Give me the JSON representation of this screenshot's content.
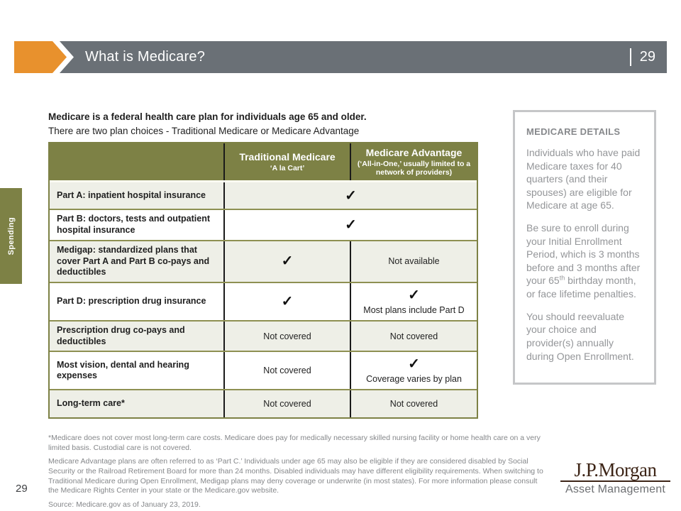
{
  "header": {
    "title": "What is Medicare?",
    "page_number": "29"
  },
  "side_tab": {
    "label": "Spending"
  },
  "intro": {
    "headline": "Medicare is a federal health care plan for individuals age 65 and older.",
    "subline": "There are two plan choices - Traditional Medicare or Medicare Advantage"
  },
  "table": {
    "check_icon": "✓",
    "columns": [
      {
        "title": "",
        "subtitle": ""
      },
      {
        "title": "Traditional Medicare",
        "subtitle": "‘A la Cart’"
      },
      {
        "title": "Medicare Advantage",
        "subtitle": "(‘All-in-One,’ usually limited to a network of providers)"
      }
    ],
    "rows": [
      {
        "label": "Part A: inpatient hospital insurance",
        "span": {
          "check": true
        }
      },
      {
        "label": "Part B: doctors, tests and outpatient hospital insurance",
        "span": {
          "check": true
        }
      },
      {
        "label": "Medigap: standardized plans that cover Part A and Part B co-pays and deductibles",
        "traditional": {
          "check": true
        },
        "advantage": {
          "text": "Not available"
        }
      },
      {
        "label": "Part D: prescription drug insurance",
        "traditional": {
          "check": true
        },
        "advantage": {
          "check": true,
          "note": "Most plans include Part D"
        }
      },
      {
        "label": "Prescription drug co-pays and deductibles",
        "traditional": {
          "text": "Not covered"
        },
        "advantage": {
          "text": "Not covered"
        }
      },
      {
        "label": "Most vision, dental and hearing expenses",
        "traditional": {
          "text": "Not covered"
        },
        "advantage": {
          "check": true,
          "note": "Coverage varies by plan"
        }
      },
      {
        "label": "Long-term care*",
        "traditional": {
          "text": "Not covered"
        },
        "advantage": {
          "text": "Not covered"
        }
      }
    ]
  },
  "details_box": {
    "title": "MEDICARE DETAILS",
    "paragraphs": [
      "Individuals who have paid Medicare taxes for 40 quarters (and their spouses) are eligible for Medicare at age 65.",
      "Be sure to enroll during your Initial Enrollment Period, which is 3 months before and 3 months after your 65th birthday month, or face lifetime penalties.",
      "You should reevaluate your choice and provider(s) annually during Open Enrollment."
    ]
  },
  "footnotes": [
    "*Medicare does not cover most long-term care costs. Medicare does pay for medically necessary skilled nursing facility or home health care on a very limited basis. Custodial care is not covered.",
    "Medicare Advantage plans are often referred to as ‘Part C.’ Individuals under age 65 may also be eligible if they are considered disabled by Social Security or the Railroad Retirement Board for more than 24 months. Disabled individuals may have different eligibility requirements. When switching to Traditional Medicare during Open Enrollment, Medigap plans may deny coverage or underwrite (in most states). For more information please consult the Medicare Rights Center in your state or the Medicare.gov website."
  ],
  "source": "Source: Medicare.gov as of January 23, 2019.",
  "page_footer": {
    "page_number": "29"
  },
  "logo": {
    "brand": "J.P.Morgan",
    "unit": "Asset Management"
  },
  "colors": {
    "olive": "#7D8145",
    "slate": "#6A7076",
    "orange": "#E8912D",
    "row_shaded": "#EEEFE7"
  }
}
